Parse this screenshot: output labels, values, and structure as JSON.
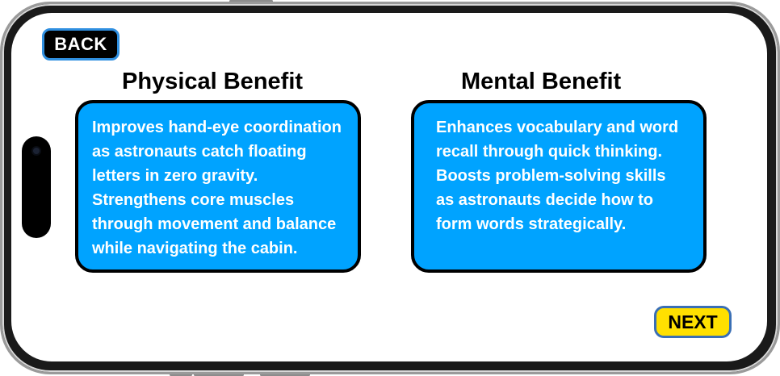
{
  "navigation": {
    "back_label": "BACK",
    "next_label": "NEXT"
  },
  "physical": {
    "title": "Physical Benefit",
    "lines": [
      "Improves hand-eye coordination",
      "as astronauts catch floating",
      "letters in zero gravity.",
      "Strengthens core muscles",
      "through movement and balance",
      "while navigating the cabin."
    ]
  },
  "mental": {
    "title": "Mental Benefit",
    "lines": [
      "Enhances vocabulary and word",
      "recall through quick thinking.",
      "Boosts problem-solving skills",
      "as astronauts decide how to",
      "form words strategically."
    ]
  },
  "colors": {
    "card_fill": "#00a3ff",
    "next_button": "#ffe000",
    "back_button": "#000000",
    "button_border": "#2f8fe0"
  }
}
